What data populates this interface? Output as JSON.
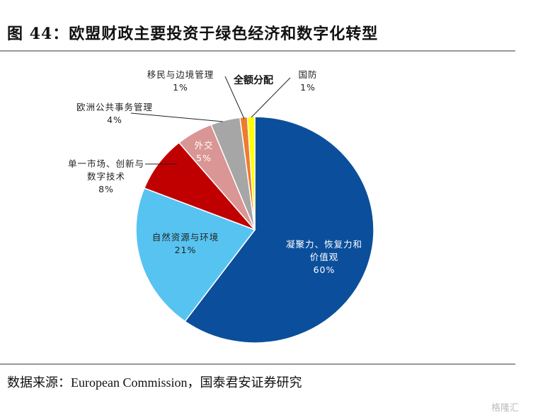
{
  "chart_data": {
    "type": "pie",
    "title": "图 44：欧盟财政主要投资于绿色经济和数字化转型",
    "annotation": "全额分配",
    "source": "数据来源：European Commission，国泰君安证券研究",
    "watermark": "格隆汇",
    "categories": [
      "凝聚力、恢复力和价值观",
      "自然资源与环境",
      "单一市场、创新与数字技术",
      "外交",
      "欧洲公共事务管理",
      "移民与边境管理",
      "国防"
    ],
    "values": [
      60,
      21,
      8,
      5,
      4,
      1,
      1
    ],
    "value_labels": [
      "60%",
      "21%",
      "8%",
      "5%",
      "4%",
      "1%",
      "1%"
    ],
    "colors": [
      "#0b4f9c",
      "#57c3f1",
      "#c00000",
      "#d99694",
      "#a6a6a6",
      "#ee7d2b",
      "#ffff00"
    ],
    "label_colors": [
      "#ffffff",
      "#222222",
      "#222222",
      "#ffffff",
      "#222222",
      "#222222",
      "#222222"
    ]
  }
}
